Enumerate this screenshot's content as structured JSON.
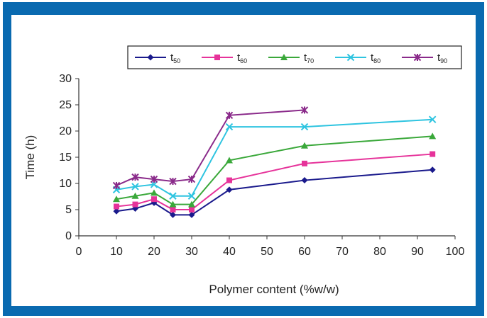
{
  "chart_data": {
    "type": "line",
    "xlabel": "Polymer content (%w/w)",
    "ylabel": "Time (h)",
    "xlim": [
      0,
      100
    ],
    "ylim": [
      0,
      30
    ],
    "xticks": [
      0,
      10,
      20,
      30,
      40,
      50,
      60,
      70,
      80,
      90,
      100
    ],
    "yticks": [
      0,
      5,
      10,
      15,
      20,
      25,
      30
    ],
    "grid": false,
    "legend_position": "top",
    "series": [
      {
        "name": "t50",
        "name_base": "t",
        "name_sub": "50",
        "color": "#1a1a8c",
        "marker": "diamond",
        "x": [
          10,
          15,
          20,
          25,
          30,
          40,
          60,
          94
        ],
        "y": [
          4.7,
          5.2,
          6.3,
          4.0,
          4.0,
          8.8,
          10.6,
          12.6
        ]
      },
      {
        "name": "t60",
        "name_base": "t",
        "name_sub": "60",
        "color": "#e6339a",
        "marker": "square",
        "x": [
          10,
          15,
          20,
          25,
          30,
          40,
          60,
          94
        ],
        "y": [
          5.6,
          6.0,
          7.0,
          5.0,
          5.0,
          10.6,
          13.8,
          15.6
        ]
      },
      {
        "name": "t70",
        "name_base": "t",
        "name_sub": "70",
        "color": "#3aa83a",
        "marker": "triangle",
        "x": [
          10,
          15,
          20,
          25,
          30,
          40,
          60,
          94
        ],
        "y": [
          7.0,
          7.6,
          8.2,
          6.0,
          6.0,
          14.4,
          17.2,
          19.0
        ]
      },
      {
        "name": "t80",
        "name_base": "t",
        "name_sub": "80",
        "color": "#2ec4e0",
        "marker": "x",
        "x": [
          10,
          15,
          20,
          25,
          30,
          40,
          60,
          94
        ],
        "y": [
          8.8,
          9.4,
          9.8,
          7.6,
          7.6,
          20.8,
          20.8,
          22.2
        ]
      },
      {
        "name": "t90",
        "name_base": "t",
        "name_sub": "90",
        "color": "#8a2a8a",
        "marker": "star",
        "x": [
          10,
          15,
          20,
          25,
          30,
          40,
          60
        ],
        "y": [
          9.6,
          11.2,
          10.8,
          10.4,
          10.8,
          23.0,
          24.0
        ]
      }
    ]
  }
}
